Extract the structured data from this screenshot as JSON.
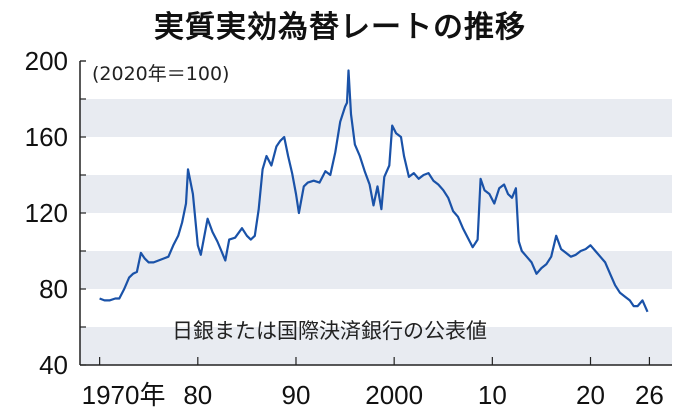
{
  "chart_data": {
    "type": "line",
    "title": "実質実効為替レートの推移",
    "unit_note": "(2020年＝100)",
    "source_note": "日銀または国際決済銀行の公表値",
    "ylim": [
      40,
      200
    ],
    "yticks": [
      "40",
      "80",
      "120",
      "160",
      "200"
    ],
    "xlim": [
      1968,
      2028.3
    ],
    "xticks": [
      {
        "value": 1970,
        "label": "1970年"
      },
      {
        "value": 1980,
        "label": "80"
      },
      {
        "value": 1990,
        "label": "90"
      },
      {
        "value": 2000,
        "label": "2000"
      },
      {
        "value": 2010,
        "label": "10"
      },
      {
        "value": 2020,
        "label": "20"
      },
      {
        "value": 2026,
        "label": "26"
      }
    ],
    "grid": "alternating horizontal bands",
    "band_color": "#e8ebf1",
    "line_color": "#1a52a8",
    "series": [
      {
        "x": [
          1970,
          1970.5,
          1971,
          1971.6,
          1972,
          1972.5,
          1973,
          1973.4,
          1973.8,
          1974.2,
          1974.6,
          1975,
          1975.5,
          1976,
          1976.5,
          1977,
          1977.5,
          1978,
          1978.4,
          1978.8,
          1979,
          1979.5,
          1980,
          1980.3,
          1981,
          1981.5,
          1982,
          1982.4,
          1982.8,
          1983.2,
          1983.8,
          1984.5,
          1985,
          1985.4,
          1985.8,
          1986.2,
          1986.6,
          1987,
          1987.5,
          1988,
          1988.4,
          1988.8,
          1989.2,
          1989.6,
          1990,
          1990.3,
          1990.8,
          1991.2,
          1991.8,
          1992.4,
          1993,
          1993.5,
          1994,
          1994.5,
          1995,
          1995.2,
          1995.35,
          1995.6,
          1996,
          1996.5,
          1997,
          1997.5,
          1997.9,
          1998.3,
          1998.7,
          1999,
          1999.5,
          1999.8,
          2000.2,
          2000.7,
          2001,
          2001.5,
          2002,
          2002.5,
          2003,
          2003.5,
          2004,
          2004.5,
          2005,
          2005.5,
          2006,
          2006.5,
          2007,
          2007.5,
          2008,
          2008.5,
          2008.8,
          2009.2,
          2009.7,
          2010.2,
          2010.7,
          2011.2,
          2011.6,
          2012,
          2012.4,
          2012.7,
          2013,
          2013.5,
          2014,
          2014.5,
          2015,
          2015.5,
          2016,
          2016.5,
          2017,
          2017.5,
          2018,
          2018.5,
          2019,
          2019.5,
          2020,
          2020.5,
          2021,
          2021.5,
          2022,
          2022.5,
          2023,
          2023.5,
          2024,
          2024.4,
          2024.8,
          2025.3,
          2025.8
        ],
        "y": [
          75,
          74,
          74,
          75,
          75,
          80,
          86,
          88,
          89,
          99,
          96,
          94,
          94,
          95,
          96,
          97,
          103,
          108,
          115,
          125,
          143,
          130,
          103,
          98,
          117,
          110,
          105,
          100,
          95,
          106,
          107,
          112,
          108,
          106,
          108,
          122,
          143,
          150,
          145,
          155,
          158,
          160,
          150,
          141,
          130,
          120,
          134,
          136,
          137,
          136,
          142,
          140,
          152,
          168,
          176,
          178,
          195,
          172,
          156,
          150,
          142,
          135,
          124,
          134,
          122,
          139,
          145,
          166,
          162,
          160,
          150,
          139,
          141,
          138,
          140,
          141,
          137,
          135,
          132,
          128,
          121,
          118,
          112,
          107,
          102,
          106,
          138,
          132,
          130,
          125,
          133,
          135,
          130,
          128,
          133,
          105,
          100,
          97,
          94,
          88,
          91,
          93,
          97,
          108,
          101,
          99,
          97,
          98,
          100,
          101,
          103,
          100,
          97,
          94,
          88,
          82,
          78,
          76,
          74,
          71,
          71,
          74,
          68
        ]
      }
    ]
  }
}
